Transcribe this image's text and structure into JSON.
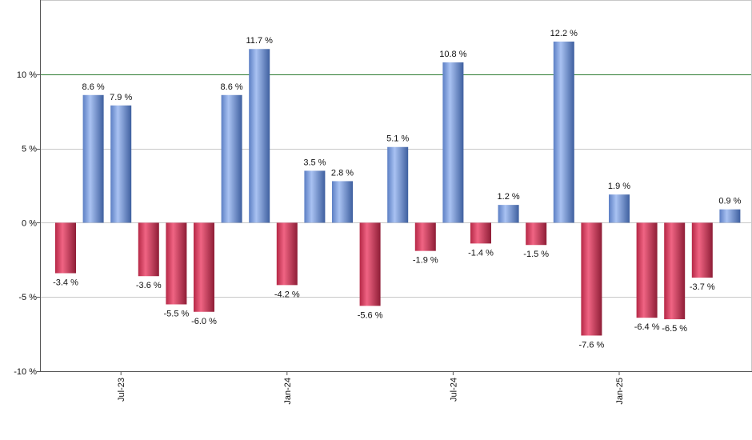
{
  "chart_data": {
    "type": "bar",
    "title": "",
    "xlabel": "",
    "ylabel": "",
    "ylim": [
      -10,
      15
    ],
    "y_ticks": [
      -10,
      -5,
      0,
      5,
      10
    ],
    "y_tick_labels": [
      "-10 %",
      "-5 %",
      "0 %",
      "5 %",
      "10 %"
    ],
    "reference_line": {
      "value": 10,
      "color": "#2e7d32"
    },
    "x_axis_labels": [
      {
        "label": "Jul-23",
        "index": 2
      },
      {
        "label": "Jan-24",
        "index": 8
      },
      {
        "label": "Jul-24",
        "index": 14
      },
      {
        "label": "Jan-25",
        "index": 20
      }
    ],
    "values": [
      -3.4,
      8.6,
      7.9,
      -3.6,
      -5.5,
      -6.0,
      8.6,
      11.7,
      -4.2,
      3.5,
      2.8,
      -5.6,
      5.1,
      -1.9,
      10.8,
      -1.4,
      1.2,
      -1.5,
      12.2,
      -7.6,
      1.9,
      -6.4,
      -6.5,
      -3.7,
      0.9
    ],
    "labels": [
      "-3.4 %",
      "8.6 %",
      "7.9 %",
      "-3.6 %",
      "-5.5 %",
      "-6.0 %",
      "8.6 %",
      "11.7 %",
      "-4.2 %",
      "3.5 %",
      "2.8 %",
      "-5.6 %",
      "5.1 %",
      "-1.9 %",
      "10.8 %",
      "-1.4 %",
      "1.2 %",
      "-1.5 %",
      "12.2 %",
      "-7.6 %",
      "1.9 %",
      "-6.4 %",
      "-6.5 %",
      "-3.7 %",
      "0.9 %"
    ],
    "colors": {
      "positive": "#6f93d8",
      "negative": "#d1375a",
      "grid": "#c8c8c8",
      "axis": "#555555"
    }
  }
}
